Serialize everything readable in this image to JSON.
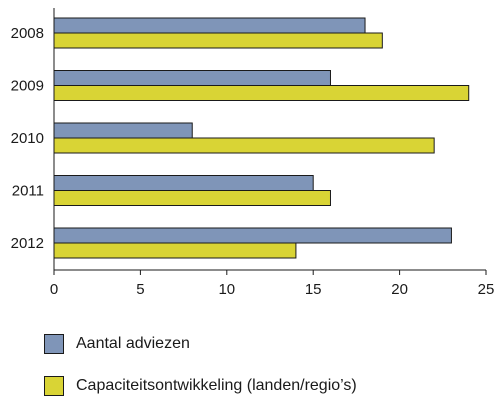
{
  "chart_data": {
    "type": "bar",
    "orientation": "horizontal",
    "categories": [
      "2008",
      "2009",
      "2010",
      "2011",
      "2012"
    ],
    "series": [
      {
        "name": "Aantal adviezen",
        "values": [
          18,
          16,
          8,
          15,
          23
        ],
        "color": "#7f95b8"
      },
      {
        "name": "Capaciteitsontwikkeling (landen/regio’s)",
        "values": [
          19,
          24,
          22,
          16,
          14
        ],
        "color": "#d9d435"
      }
    ],
    "xlim": [
      0,
      25
    ],
    "xticks": [
      0,
      5,
      10,
      15,
      20,
      25
    ],
    "grid": false,
    "legend_position": "bottom-left",
    "title": "",
    "xlabel": "",
    "ylabel": ""
  }
}
